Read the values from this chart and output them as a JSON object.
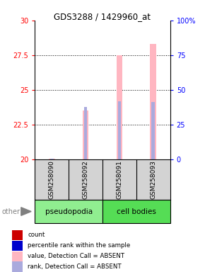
{
  "title": "GDS3288 / 1429960_at",
  "samples": [
    "GSM258090",
    "GSM258092",
    "GSM258091",
    "GSM258093"
  ],
  "ylim_left": [
    20,
    30
  ],
  "ylim_right": [
    0,
    100
  ],
  "yticks_left": [
    20,
    22.5,
    25,
    27.5,
    30
  ],
  "yticks_right": [
    0,
    25,
    50,
    75,
    100
  ],
  "bar_values_pink": [
    20.05,
    23.5,
    27.5,
    28.3
  ],
  "bar_values_blue": [
    20.05,
    23.75,
    24.15,
    24.1
  ],
  "bar_base": 20,
  "pink_color": "#FFB6C1",
  "blue_color": "#AAAADD",
  "legend_items": [
    {
      "color": "#CC0000",
      "label": "count"
    },
    {
      "color": "#0000CC",
      "label": "percentile rank within the sample"
    },
    {
      "color": "#FFB6C1",
      "label": "value, Detection Call = ABSENT"
    },
    {
      "color": "#AAAADD",
      "label": "rank, Detection Call = ABSENT"
    }
  ],
  "sample_area_color": "#d3d3d3",
  "pseudopodia_color": "#90EE90",
  "cell_bodies_color": "#55DD55"
}
